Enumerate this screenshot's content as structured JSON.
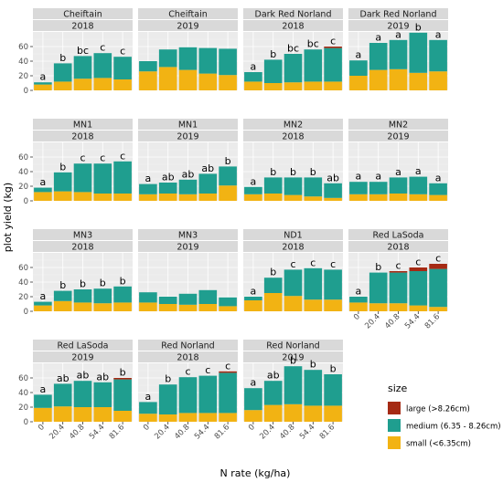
{
  "chart_data": {
    "type": "bar",
    "stacked": true,
    "xlabel": "N rate (kg/ha)",
    "ylabel": "plot yield (kg)",
    "ylim": [
      0,
      80
    ],
    "yticks": [
      0,
      20,
      40,
      60
    ],
    "grid": true,
    "categories": [
      "0",
      "20.4",
      "40.8",
      "54.4",
      "81.6"
    ],
    "legend": {
      "title": "size",
      "position": "right",
      "entries": [
        {
          "key": "large",
          "label": "large (>8.26cm)",
          "color": "#a52a14"
        },
        {
          "key": "medium",
          "label": "medium (6.35 - 8.26cm)",
          "color": "#1f9e8f"
        },
        {
          "key": "small",
          "label": "small (<6.35cm)",
          "color": "#f2b313"
        }
      ]
    },
    "panels": [
      {
        "variety": "Cheiftain",
        "year": "2018",
        "xticks": [
          "0",
          "20.4",
          "40.8",
          "54.4",
          "81.6"
        ],
        "small": [
          8,
          12,
          16,
          17,
          15
        ],
        "medium": [
          3,
          25,
          31,
          34,
          31
        ],
        "large": [
          0,
          0,
          0,
          0,
          0
        ],
        "letters": [
          "a",
          "b",
          "bc",
          "c",
          "c"
        ]
      },
      {
        "variety": "Cheiftain",
        "year": "2019",
        "xticks": [
          "0",
          "20.4",
          "40.8",
          "54.4",
          "81.6"
        ],
        "small": [
          26,
          32,
          28,
          23,
          21
        ],
        "medium": [
          14,
          24,
          31,
          35,
          36
        ],
        "large": [
          0,
          0,
          0,
          0,
          0
        ],
        "letters": [
          "",
          "",
          "",
          "",
          ""
        ]
      },
      {
        "variety": "Dark Red Norland",
        "year": "2018",
        "xticks": [
          "0",
          "20.4",
          "40.8",
          "54.4",
          "81.6"
        ],
        "small": [
          12,
          10,
          11,
          12,
          12
        ],
        "medium": [
          13,
          32,
          39,
          44,
          46
        ],
        "large": [
          0,
          0,
          0,
          0,
          2
        ],
        "letters": [
          "a",
          "b",
          "bc",
          "bc",
          "c"
        ]
      },
      {
        "variety": "Dark Red Norland",
        "year": "2019",
        "xticks": [
          "0",
          "20.4",
          "40.8",
          "54.4",
          "81.6"
        ],
        "small": [
          20,
          28,
          29,
          24,
          26
        ],
        "medium": [
          21,
          37,
          40,
          55,
          43
        ],
        "large": [
          0,
          0,
          0,
          0,
          0
        ],
        "letters": [
          "a",
          "a",
          "a",
          "b",
          "a"
        ]
      },
      {
        "variety": "MN1",
        "year": "2018",
        "xticks": [
          "0",
          "20.4",
          "40.8",
          "54.4",
          "81.6"
        ],
        "small": [
          12,
          13,
          12,
          10,
          10
        ],
        "medium": [
          6,
          26,
          39,
          41,
          44
        ],
        "large": [
          0,
          0,
          0,
          0,
          0
        ],
        "letters": [
          "a",
          "b",
          "c",
          "c",
          "c"
        ]
      },
      {
        "variety": "MN1",
        "year": "2019",
        "xticks": [
          "0",
          "20.4",
          "40.8",
          "54.4",
          "81.6"
        ],
        "small": [
          9,
          10,
          9,
          10,
          21
        ],
        "medium": [
          14,
          15,
          20,
          27,
          26
        ],
        "large": [
          0,
          0,
          0,
          0,
          0
        ],
        "letters": [
          "a",
          "ab",
          "ab",
          "ab",
          "b"
        ]
      },
      {
        "variety": "MN2",
        "year": "2018",
        "xticks": [
          "0",
          "20.4",
          "40.8",
          "54.4",
          "81.6"
        ],
        "small": [
          9,
          10,
          8,
          6,
          4
        ],
        "medium": [
          10,
          22,
          24,
          26,
          20
        ],
        "large": [
          0,
          0,
          0,
          0,
          0
        ],
        "letters": [
          "a",
          "b",
          "b",
          "b",
          "ab"
        ]
      },
      {
        "variety": "MN2",
        "year": "2019",
        "xticks": [
          "0",
          "20.4",
          "40.8",
          "54.4",
          "81.6"
        ],
        "small": [
          9,
          9,
          10,
          9,
          8
        ],
        "medium": [
          17,
          17,
          22,
          24,
          16
        ],
        "large": [
          0,
          0,
          0,
          0,
          0
        ],
        "letters": [
          "a",
          "a",
          "a",
          "a",
          "a"
        ]
      },
      {
        "variety": "MN3",
        "year": "2018",
        "xticks": [
          "0",
          "20.4",
          "40.8",
          "54.4",
          "81.6"
        ],
        "small": [
          8,
          14,
          12,
          11,
          12
        ],
        "medium": [
          5,
          14,
          18,
          20,
          22
        ],
        "large": [
          0,
          0,
          0,
          0,
          0
        ],
        "letters": [
          "a",
          "b",
          "b",
          "b",
          "b"
        ]
      },
      {
        "variety": "MN3",
        "year": "2019",
        "xticks": [
          "0",
          "20.4",
          "40.8",
          "54.4",
          "81.6"
        ],
        "small": [
          12,
          10,
          9,
          10,
          7
        ],
        "medium": [
          14,
          10,
          15,
          19,
          12
        ],
        "large": [
          0,
          0,
          0,
          0,
          0
        ],
        "letters": [
          "",
          "",
          "",
          "",
          ""
        ]
      },
      {
        "variety": "ND1",
        "year": "2018",
        "xticks": [
          "0",
          "20.4",
          "40.8",
          "54.4",
          "81.6"
        ],
        "small": [
          15,
          25,
          21,
          16,
          16
        ],
        "medium": [
          5,
          21,
          36,
          43,
          41
        ],
        "large": [
          0,
          0,
          0,
          0,
          0
        ],
        "letters": [
          "a",
          "b",
          "c",
          "c",
          "c"
        ]
      },
      {
        "variety": "Red LaSoda",
        "year": "2018",
        "xticks": [
          "0",
          "20.4",
          "40.8",
          "54.4",
          "81.6"
        ],
        "small": [
          12,
          11,
          11,
          8,
          6
        ],
        "medium": [
          8,
          42,
          42,
          47,
          52
        ],
        "large": [
          0,
          0,
          2,
          5,
          7
        ],
        "letters": [
          "a",
          "b",
          "c",
          "c",
          "c"
        ]
      },
      {
        "variety": "Red LaSoda",
        "year": "2019",
        "xticks": [
          "0",
          "20.4",
          "40.8",
          "54.4",
          "81.6"
        ],
        "small": [
          19,
          21,
          20,
          20,
          15
        ],
        "medium": [
          18,
          31,
          36,
          34,
          43
        ],
        "large": [
          0,
          0,
          0,
          0,
          2
        ],
        "letters": [
          "a",
          "ab",
          "ab",
          "ab",
          "b"
        ]
      },
      {
        "variety": "Red Norland",
        "year": "2018",
        "xticks": [
          "0",
          "20.4",
          "40.8",
          "54.4",
          "81.6"
        ],
        "small": [
          11,
          10,
          12,
          12,
          12
        ],
        "medium": [
          16,
          41,
          49,
          51,
          55
        ],
        "large": [
          0,
          0,
          0,
          0,
          2
        ],
        "letters": [
          "a",
          "b",
          "c",
          "c",
          "c"
        ]
      },
      {
        "variety": "Red Norland",
        "year": "2019",
        "xticks": [
          "0",
          "20.4",
          "40.8",
          "54.4",
          "81.6"
        ],
        "small": [
          16,
          23,
          24,
          22,
          22
        ],
        "medium": [
          30,
          33,
          52,
          49,
          43
        ],
        "large": [
          0,
          0,
          0,
          0,
          0
        ],
        "letters": [
          "a",
          "ab",
          "b",
          "b",
          "b"
        ]
      }
    ]
  }
}
